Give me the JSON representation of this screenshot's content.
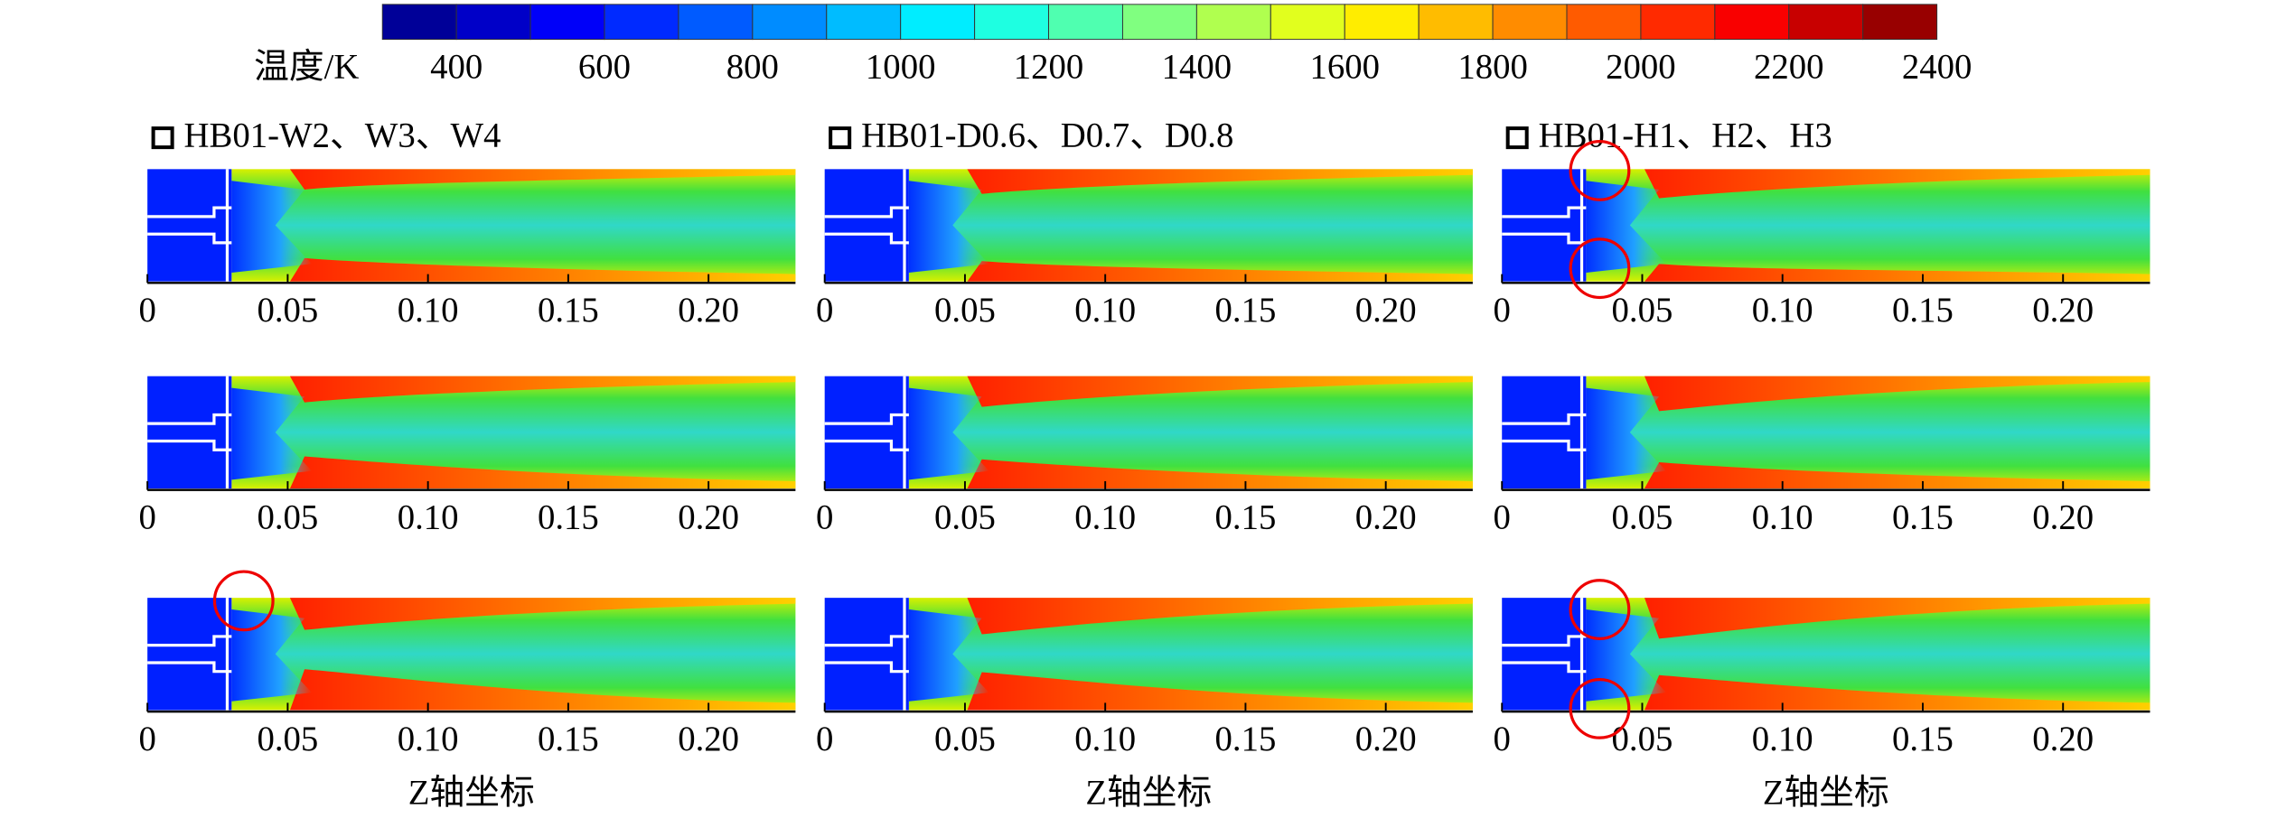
{
  "colorbar": {
    "label": "温度/K",
    "lim": [
      300,
      2400
    ],
    "ticks": [
      400,
      600,
      800,
      1000,
      1200,
      1400,
      1600,
      1800,
      2000,
      2200,
      2400
    ]
  },
  "columns": [
    {
      "label": "HB01-W2、W3、W4"
    },
    {
      "label": "HB01-D0.6、D0.7、D0.8"
    },
    {
      "label": "HB01-H1、H2、H3"
    }
  ],
  "x_axis": {
    "label": "Z轴坐标",
    "lim": [
      0,
      0.231
    ],
    "ticks": [
      0,
      0.05,
      {
        "value": 0.1,
        "label": "0.10"
      },
      0.15,
      {
        "value": 0.2,
        "label": "0.20"
      }
    ]
  }
}
